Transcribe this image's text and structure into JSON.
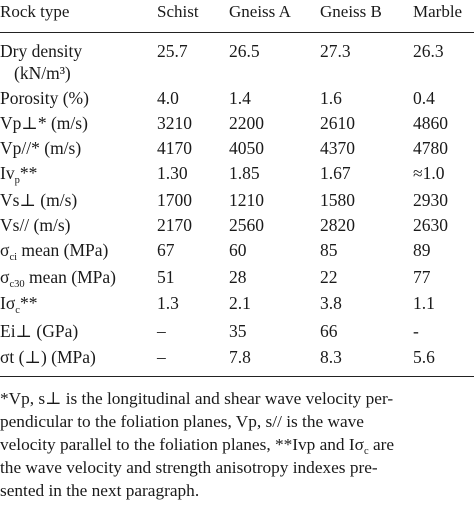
{
  "table": {
    "headers": [
      "Rock type",
      "Schist",
      "Gneiss A",
      "Gneiss B",
      "Marble"
    ],
    "rows": [
      {
        "label": {
          "base": "Dry density",
          "sub": "",
          "tail": "",
          "line2": "(kN/m³)"
        },
        "values": [
          "25.7",
          "26.5",
          "27.3",
          "26.3"
        ]
      },
      {
        "label": {
          "base": "Porosity (%)",
          "sub": "",
          "tail": ""
        },
        "values": [
          "4.0",
          "1.4",
          "1.6",
          "0.4"
        ]
      },
      {
        "label": {
          "base": "Vp⊥* (m/s)",
          "sub": "",
          "tail": ""
        },
        "values": [
          "3210",
          "2200",
          "2610",
          "4860"
        ]
      },
      {
        "label": {
          "base": "Vp//* (m/s)",
          "sub": "",
          "tail": ""
        },
        "values": [
          "4170",
          "4050",
          "4370",
          "4780"
        ]
      },
      {
        "label": {
          "base": "Iv",
          "sub": "p",
          "tail": "**"
        },
        "values": [
          "1.30",
          "1.85",
          "1.67",
          "≈1.0"
        ]
      },
      {
        "label": {
          "base": "Vs⊥ (m/s)",
          "sub": "",
          "tail": ""
        },
        "values": [
          "1700",
          "1210",
          "1580",
          "2930"
        ]
      },
      {
        "label": {
          "base": "Vs// (m/s)",
          "sub": "",
          "tail": ""
        },
        "values": [
          "2170",
          "2560",
          "2820",
          "2630"
        ]
      },
      {
        "label": {
          "base": "σ",
          "sub": "ci",
          "tail": " mean (MPa)"
        },
        "values": [
          "67",
          "60",
          "85",
          "89"
        ]
      },
      {
        "label": {
          "base": "σ",
          "sub": "c30",
          "tail": " mean (MPa)"
        },
        "values": [
          "51",
          "28",
          "22",
          "77"
        ]
      },
      {
        "label": {
          "base": "Iσ",
          "sub": "c",
          "tail": "**"
        },
        "values": [
          "1.3",
          "2.1",
          "3.8",
          "1.1"
        ]
      },
      {
        "label": {
          "base": "Ei⊥ (GPa)",
          "sub": "",
          "tail": ""
        },
        "values": [
          "–",
          "35",
          "66",
          "-"
        ]
      },
      {
        "label": {
          "base": "σt (⊥) (MPa)",
          "sub": "",
          "tail": ""
        },
        "values": [
          "–",
          "7.8",
          "8.3",
          "5.6"
        ]
      }
    ]
  },
  "footnote": {
    "line1": "*Vp, s⊥ is the longitudinal and shear wave velocity per-",
    "line2": "pendicular to the foliation planes, Vp, s// is the wave",
    "line3_a": "velocity parallel to the foliation planes, **Ivp and Iσ",
    "line3_sub": "c",
    "line3_b": " are",
    "line4": "the wave velocity and strength anisotropy indexes pre-",
    "line5": "sented in the next paragraph."
  }
}
